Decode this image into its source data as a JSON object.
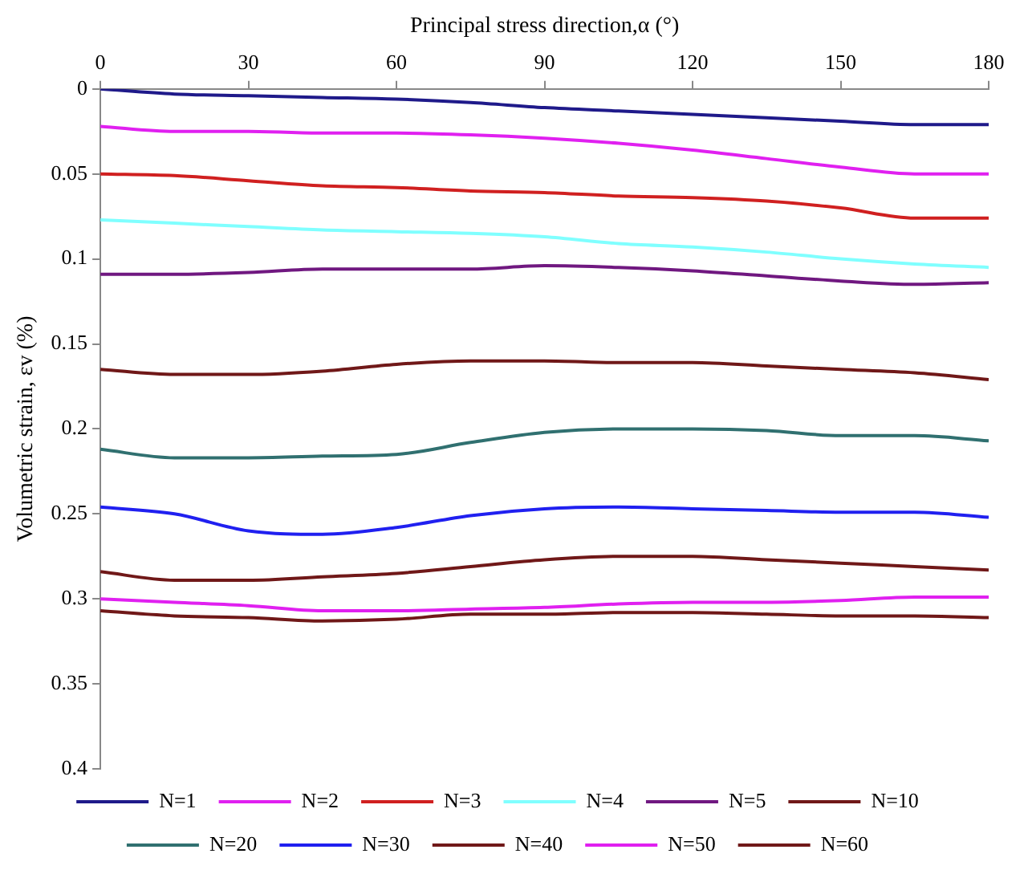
{
  "chart_data": {
    "type": "line",
    "xlabel": "Principal stress direction,α (°)",
    "ylabel": "Volumetric strain, εv (%)",
    "x": [
      0,
      15,
      30,
      45,
      60,
      75,
      90,
      105,
      120,
      135,
      150,
      165,
      180
    ],
    "xlim": [
      0,
      180
    ],
    "xticks": [
      0,
      30,
      60,
      90,
      120,
      150,
      180
    ],
    "ylim": [
      0.4,
      0
    ],
    "yticks": [
      0,
      0.05,
      0.1,
      0.15,
      0.2,
      0.25,
      0.3,
      0.35,
      0.4
    ],
    "grid": false,
    "legend": "bottom",
    "marker": "none",
    "line_style": "solid",
    "series": [
      {
        "name": "N=1",
        "color": "#1f1a8a",
        "values": [
          0,
          0.003,
          0.004,
          0.005,
          0.006,
          0.008,
          0.011,
          0.013,
          0.015,
          0.017,
          0.019,
          0.021,
          0.021
        ]
      },
      {
        "name": "N=2",
        "color": "#e020f0",
        "values": [
          0.022,
          0.025,
          0.025,
          0.026,
          0.026,
          0.027,
          0.029,
          0.032,
          0.036,
          0.041,
          0.046,
          0.05,
          0.05
        ]
      },
      {
        "name": "N=3",
        "color": "#d02020",
        "values": [
          0.05,
          0.051,
          0.054,
          0.057,
          0.058,
          0.06,
          0.061,
          0.063,
          0.064,
          0.066,
          0.07,
          0.076,
          0.076
        ]
      },
      {
        "name": "N=4",
        "color": "#80ffff",
        "values": [
          0.077,
          0.079,
          0.081,
          0.083,
          0.084,
          0.085,
          0.087,
          0.091,
          0.093,
          0.096,
          0.1,
          0.103,
          0.105
        ]
      },
      {
        "name": "N=5",
        "color": "#701880",
        "values": [
          0.109,
          0.109,
          0.108,
          0.106,
          0.106,
          0.106,
          0.104,
          0.105,
          0.107,
          0.11,
          0.113,
          0.115,
          0.114
        ]
      },
      {
        "name": "N=10",
        "color": "#701818",
        "values": [
          0.165,
          0.168,
          0.168,
          0.166,
          0.162,
          0.16,
          0.16,
          0.161,
          0.161,
          0.163,
          0.165,
          0.167,
          0.171
        ]
      },
      {
        "name": "N=20",
        "color": "#307070",
        "values": [
          0.212,
          0.217,
          0.217,
          0.216,
          0.215,
          0.208,
          0.202,
          0.2,
          0.2,
          0.201,
          0.204,
          0.204,
          0.207
        ]
      },
      {
        "name": "N=30",
        "color": "#2020f0",
        "values": [
          0.246,
          0.25,
          0.26,
          0.262,
          0.258,
          0.251,
          0.247,
          0.246,
          0.247,
          0.248,
          0.249,
          0.249,
          0.252
        ]
      },
      {
        "name": "N=40",
        "color": "#701818",
        "values": [
          0.284,
          0.289,
          0.289,
          0.287,
          0.285,
          0.281,
          0.277,
          0.275,
          0.275,
          0.277,
          0.279,
          0.281,
          0.283
        ]
      },
      {
        "name": "N=50",
        "color": "#e020f0",
        "values": [
          0.3,
          0.302,
          0.304,
          0.307,
          0.307,
          0.306,
          0.305,
          0.303,
          0.302,
          0.302,
          0.301,
          0.299,
          0.299
        ]
      },
      {
        "name": "N=60",
        "color": "#701818",
        "values": [
          0.307,
          0.31,
          0.311,
          0.313,
          0.312,
          0.309,
          0.309,
          0.308,
          0.308,
          0.309,
          0.31,
          0.31,
          0.311
        ]
      }
    ]
  }
}
